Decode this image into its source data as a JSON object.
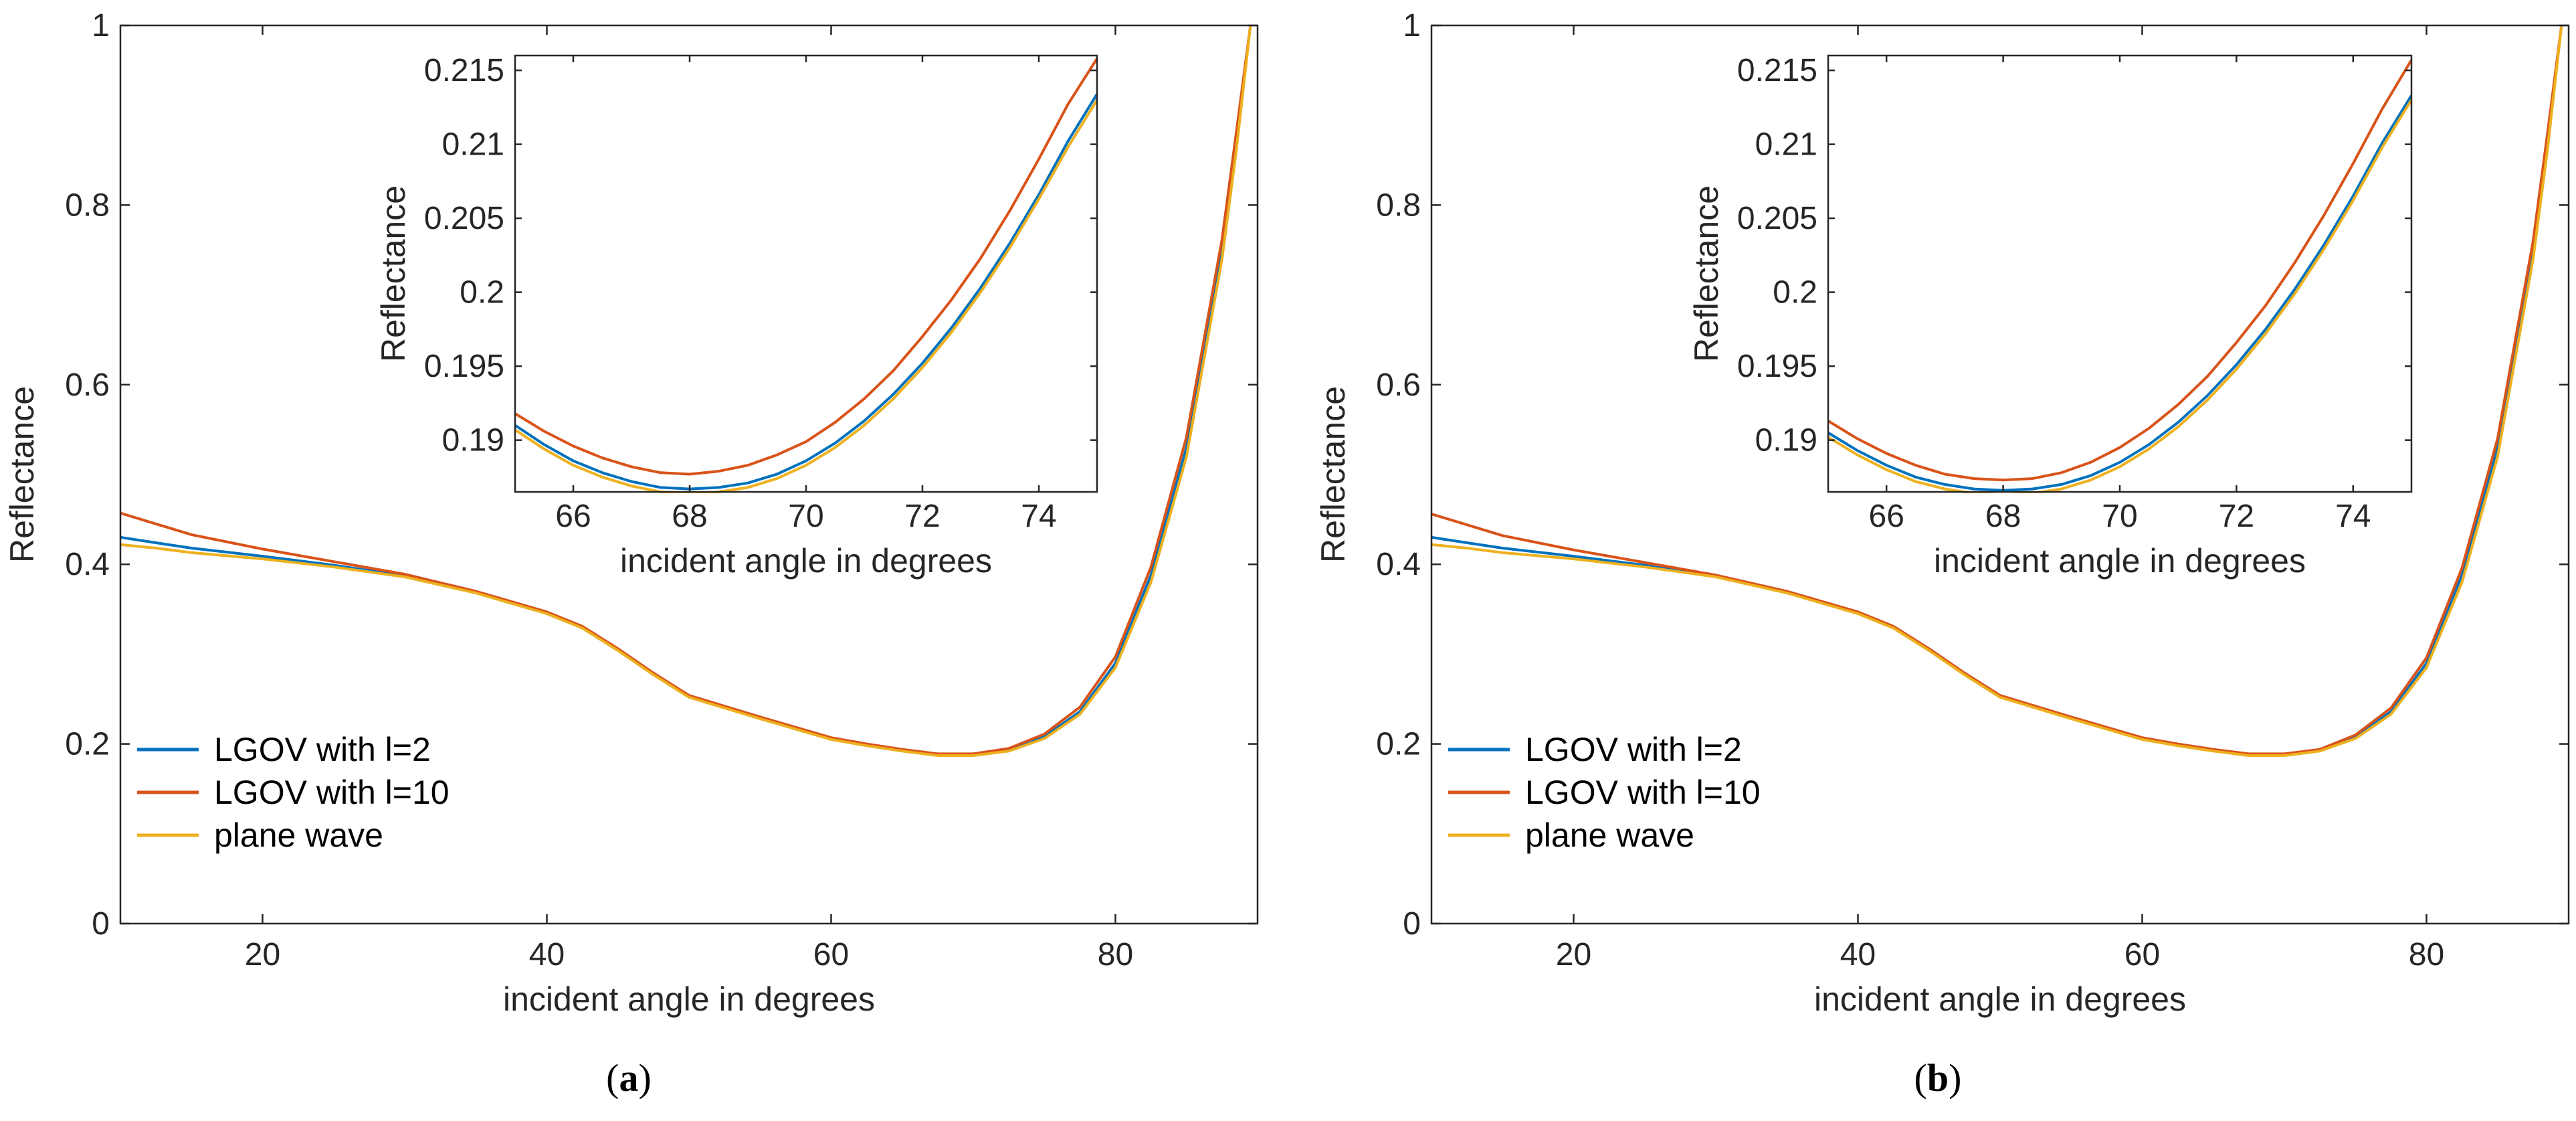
{
  "figure": {
    "panel_labels": [
      {
        "open": "(",
        "letter": "a",
        "close": ")"
      },
      {
        "open": "(",
        "letter": "b",
        "close": ")"
      }
    ]
  },
  "colors": {
    "LGOV with l=2": "#0072BD",
    "LGOV with l=10": "#D95319",
    "plane wave": "#EDB120",
    "axis": "#262626"
  },
  "chart_data": [
    {
      "type": "line",
      "panel": "a",
      "main": {
        "title": "",
        "xlabel": "incident angle in degrees",
        "ylabel": "Reflectance",
        "xlim": [
          10,
          90
        ],
        "ylim": [
          0,
          1
        ],
        "xticks": [
          20,
          40,
          60,
          80
        ],
        "xtick_labels": [
          "20",
          "40",
          "60",
          "80"
        ],
        "yticks": [
          0,
          0.2,
          0.4,
          0.6,
          0.8,
          1
        ],
        "ytick_labels": [
          "0",
          "0.2",
          "0.4",
          "0.6",
          "0.8",
          "1"
        ],
        "legend_position": "bottom-left",
        "x": [
          10,
          12.5,
          15,
          20,
          25,
          30,
          35,
          40,
          42.5,
          45,
          47.5,
          50,
          55,
          60,
          62.5,
          65,
          67.5,
          70,
          72.5,
          75,
          77.5,
          80,
          82.5,
          85,
          87.5,
          88.5,
          89.5
        ],
        "series": [
          {
            "name": "LGOV with l=2",
            "values": [
              0.43,
              0.424,
              0.418,
              0.409,
              0.399,
              0.387,
              0.369,
              0.346,
              0.33,
              0.305,
              0.278,
              0.253,
              0.229,
              0.206,
              0.199,
              0.193,
              0.188,
              0.188,
              0.193,
              0.208,
              0.236,
              0.29,
              0.388,
              0.53,
              0.75,
              0.87,
              1.0
            ]
          },
          {
            "name": "LGOV with l=10",
            "values": [
              0.457,
              0.445,
              0.433,
              0.417,
              0.403,
              0.389,
              0.37,
              0.347,
              0.331,
              0.306,
              0.279,
              0.254,
              0.23,
              0.207,
              0.2,
              0.194,
              0.189,
              0.189,
              0.195,
              0.211,
              0.241,
              0.297,
              0.397,
              0.542,
              0.762,
              0.88,
              1.0
            ]
          },
          {
            "name": "plane wave",
            "values": [
              0.422,
              0.418,
              0.413,
              0.406,
              0.397,
              0.386,
              0.368,
              0.345,
              0.329,
              0.304,
              0.277,
              0.252,
              0.228,
              0.205,
              0.198,
              0.192,
              0.187,
              0.187,
              0.192,
              0.206,
              0.233,
              0.285,
              0.38,
              0.52,
              0.74,
              0.86,
              1.0
            ]
          }
        ]
      },
      "inset": {
        "xlabel": "incident angle in degrees",
        "ylabel": "Reflectance",
        "xlim": [
          65,
          75
        ],
        "ylim": [
          0.1865,
          0.216
        ],
        "xticks": [
          66,
          68,
          70,
          72,
          74
        ],
        "xtick_labels": [
          "66",
          "68",
          "70",
          "72",
          "74"
        ],
        "yticks": [
          0.19,
          0.195,
          0.2,
          0.205,
          0.21,
          0.215
        ],
        "ytick_labels": [
          "0.19",
          "0.195",
          "0.2",
          "0.205",
          "0.21",
          "0.215"
        ],
        "x": [
          65,
          65.5,
          66,
          66.5,
          67,
          67.5,
          68,
          68.5,
          69,
          69.5,
          70,
          70.5,
          71,
          71.5,
          72,
          72.5,
          73,
          73.5,
          74,
          74.5,
          75
        ],
        "series": [
          {
            "name": "LGOV with l=2",
            "values": [
              0.191,
              0.1897,
              0.1886,
              0.1878,
              0.1872,
              0.1868,
              0.1867,
              0.1868,
              0.1871,
              0.1877,
              0.1886,
              0.1898,
              0.1913,
              0.1931,
              0.1952,
              0.1976,
              0.2003,
              0.2033,
              0.2066,
              0.2102,
              0.2134
            ]
          },
          {
            "name": "LGOV with l=10",
            "values": [
              0.1918,
              0.1906,
              0.1896,
              0.1888,
              0.1882,
              0.1878,
              0.1877,
              0.1879,
              0.1883,
              0.189,
              0.1899,
              0.1912,
              0.1928,
              0.1947,
              0.197,
              0.1995,
              0.2023,
              0.2055,
              0.209,
              0.2127,
              0.2158
            ]
          },
          {
            "name": "plane wave",
            "values": [
              0.1907,
              0.1894,
              0.1883,
              0.1875,
              0.1869,
              0.1865,
              0.1864,
              0.1865,
              0.1868,
              0.1874,
              0.1883,
              0.1895,
              0.191,
              0.1928,
              0.1949,
              0.1973,
              0.2,
              0.203,
              0.2063,
              0.2098,
              0.213
            ]
          }
        ]
      }
    },
    {
      "type": "line",
      "panel": "b",
      "main": {
        "title": "",
        "xlabel": "incident angle in degrees",
        "ylabel": "Reflectance",
        "xlim": [
          10,
          90
        ],
        "ylim": [
          0,
          1
        ],
        "xticks": [
          20,
          40,
          60,
          80
        ],
        "xtick_labels": [
          "20",
          "40",
          "60",
          "80"
        ],
        "yticks": [
          0,
          0.2,
          0.4,
          0.6,
          0.8,
          1
        ],
        "ytick_labels": [
          "0",
          "0.2",
          "0.4",
          "0.6",
          "0.8",
          "1"
        ],
        "legend_position": "bottom-left",
        "x": [
          10,
          12.5,
          15,
          20,
          25,
          30,
          35,
          40,
          42.5,
          45,
          47.5,
          50,
          55,
          60,
          62.5,
          65,
          67.5,
          70,
          72.5,
          75,
          77.5,
          80,
          82.5,
          85,
          87.5,
          88.5,
          89.5
        ],
        "series": [
          {
            "name": "LGOV with l=2",
            "values": [
              0.43,
              0.424,
              0.418,
              0.409,
              0.399,
              0.387,
              0.369,
              0.346,
              0.33,
              0.305,
              0.278,
              0.253,
              0.229,
              0.206,
              0.199,
              0.193,
              0.188,
              0.188,
              0.193,
              0.208,
              0.236,
              0.29,
              0.388,
              0.53,
              0.75,
              0.87,
              1.0
            ]
          },
          {
            "name": "LGOV with l=10",
            "values": [
              0.456,
              0.444,
              0.432,
              0.416,
              0.402,
              0.388,
              0.37,
              0.347,
              0.331,
              0.306,
              0.279,
              0.254,
              0.23,
              0.207,
              0.2,
              0.194,
              0.189,
              0.189,
              0.194,
              0.21,
              0.24,
              0.296,
              0.396,
              0.54,
              0.76,
              0.878,
              1.0
            ]
          },
          {
            "name": "plane wave",
            "values": [
              0.422,
              0.418,
              0.413,
              0.406,
              0.397,
              0.386,
              0.368,
              0.345,
              0.329,
              0.304,
              0.277,
              0.252,
              0.228,
              0.205,
              0.198,
              0.192,
              0.187,
              0.187,
              0.192,
              0.206,
              0.233,
              0.285,
              0.38,
              0.52,
              0.74,
              0.86,
              1.0
            ]
          }
        ]
      },
      "inset": {
        "xlabel": "incident angle in degrees",
        "ylabel": "Reflectance",
        "xlim": [
          65,
          75
        ],
        "ylim": [
          0.1865,
          0.216
        ],
        "xticks": [
          66,
          68,
          70,
          72,
          74
        ],
        "xtick_labels": [
          "66",
          "68",
          "70",
          "72",
          "74"
        ],
        "yticks": [
          0.19,
          0.195,
          0.2,
          0.205,
          0.21,
          0.215
        ],
        "ytick_labels": [
          "0.19",
          "0.195",
          "0.2",
          "0.205",
          "0.21",
          "0.215"
        ],
        "x": [
          65,
          65.5,
          66,
          66.5,
          67,
          67.5,
          68,
          68.5,
          69,
          69.5,
          70,
          70.5,
          71,
          71.5,
          72,
          72.5,
          73,
          73.5,
          74,
          74.5,
          75
        ],
        "series": [
          {
            "name": "LGOV with l=2",
            "values": [
              0.1905,
              0.1893,
              0.1883,
              0.1875,
              0.187,
              0.1867,
              0.1866,
              0.1867,
              0.187,
              0.1876,
              0.1885,
              0.1897,
              0.1912,
              0.193,
              0.1951,
              0.1975,
              0.2002,
              0.2032,
              0.2065,
              0.2101,
              0.2133
            ]
          },
          {
            "name": "LGOV with l=10",
            "values": [
              0.1913,
              0.1901,
              0.1891,
              0.1883,
              0.1877,
              0.1874,
              0.1873,
              0.1874,
              0.1878,
              0.1885,
              0.1895,
              0.1908,
              0.1924,
              0.1943,
              0.1966,
              0.1991,
              0.202,
              0.2052,
              0.2087,
              0.2124,
              0.2157
            ]
          },
          {
            "name": "plane wave",
            "values": [
              0.1902,
              0.189,
              0.188,
              0.1872,
              0.1867,
              0.1864,
              0.1863,
              0.1864,
              0.1867,
              0.1873,
              0.1882,
              0.1894,
              0.1909,
              0.1927,
              0.1948,
              0.1972,
              0.1999,
              0.2029,
              0.2062,
              0.2098,
              0.213
            ]
          }
        ]
      }
    }
  ]
}
